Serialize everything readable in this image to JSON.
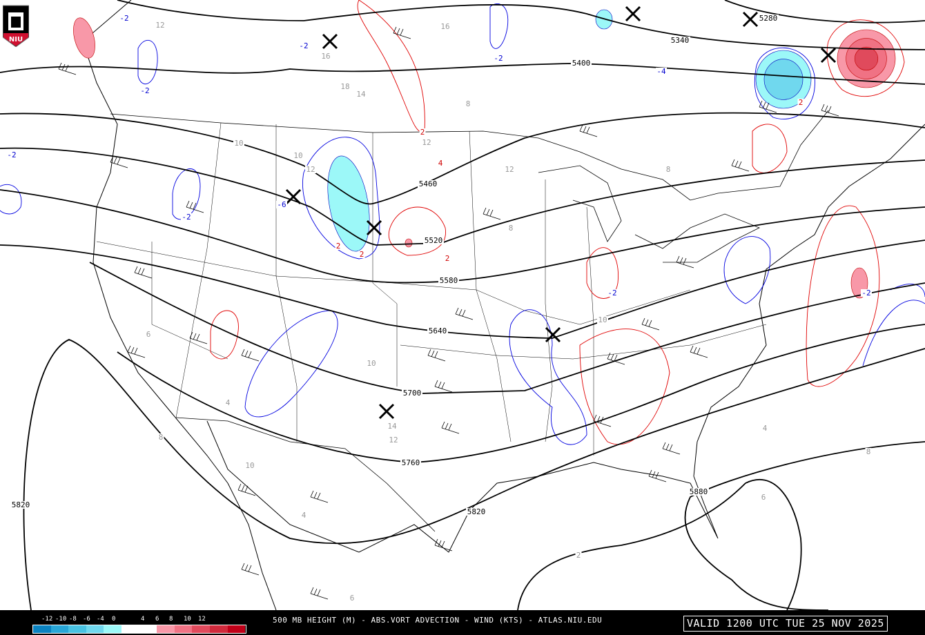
{
  "map": {
    "title": "500 MB HEIGHT (M) - ABS.VORT ADVECTION - WIND (KTS) - ATLAS.NIU.EDU",
    "valid_time": "VALID 1200 UTC TUE 25 NOV 2025",
    "logo_text": "NIU",
    "height_contour_labels": [
      "5280",
      "5340",
      "5400",
      "5460",
      "5520",
      "5580",
      "5640",
      "5700",
      "5760",
      "5820",
      "5820",
      "5880"
    ],
    "vorticity_labels": [
      "-2",
      "-2",
      "-2",
      "-2",
      "-4",
      "-6",
      "-2",
      "2",
      "2",
      "2",
      "2",
      "4",
      "2",
      "-2",
      "-2",
      "-2"
    ],
    "wind_speed_labels": [
      "12",
      "16",
      "18",
      "14",
      "16",
      "10",
      "12",
      "8",
      "12",
      "8",
      "10",
      "12",
      "10",
      "8",
      "14",
      "12",
      "10",
      "6",
      "4",
      "8",
      "10",
      "2",
      "4",
      "8",
      "6",
      "4",
      "6"
    ],
    "low_center_markers": 8
  },
  "colorbar": {
    "labels": [
      "-12",
      "-10",
      "-8",
      "-6",
      "-4",
      "0",
      "4",
      "6",
      "8",
      "10",
      "12"
    ],
    "colors": [
      "#0a82c0",
      "#28a6d6",
      "#48c2e2",
      "#70d8ee",
      "#9cf8f8",
      "#ffffff",
      "#ffffff",
      "#f898a8",
      "#f07284",
      "#e04a5c",
      "#d02a3c",
      "#c00018"
    ]
  },
  "colors": {
    "height_contour": "#000000",
    "positive_vort": "#e00000",
    "negative_vort": "#0000e0",
    "shade_pos": "#e04a5c",
    "shade_neg": "#70d8ee"
  }
}
